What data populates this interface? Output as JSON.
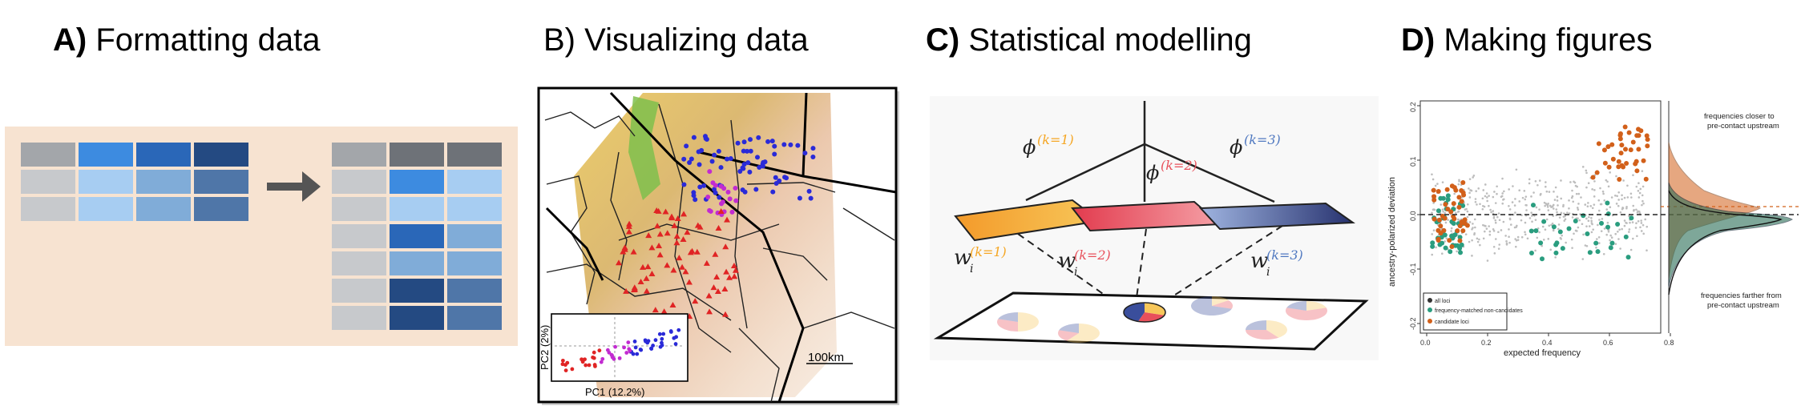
{
  "panels": {
    "a": {
      "label": "A)",
      "title": "Formatting data"
    },
    "b": {
      "label": "B)",
      "title": "Visualizing data",
      "inset_x_label": "PC1 (12.2%)",
      "inset_y_label": "PC2 (2%)",
      "scale_bar": "100km"
    },
    "c": {
      "label": "C)",
      "title": "Statistical modelling",
      "phi_labels": [
        "ϕ",
        "ϕ",
        "ϕ"
      ],
      "phi_k": [
        "(k=1)",
        "(k=2)",
        "(k=3)"
      ],
      "w_labels": [
        "w",
        "w",
        "w"
      ],
      "w_k": [
        "(k=1)",
        "(k=2)",
        "(k=3)"
      ],
      "w_sub": "i",
      "colors": {
        "k1": "#f5a623",
        "k2": "#e8505b",
        "k3": "#3a4e9c"
      }
    },
    "d": {
      "label": "D)",
      "title": "Making figures",
      "xlabel": "expected frequency",
      "ylabel": "ancestry-polarized deviation",
      "x_ticks": [
        "0.0",
        "0.2",
        "0.4",
        "0.6",
        "0.8"
      ],
      "y_ticks": [
        "0.2",
        "0.1",
        "0.0",
        "-0.1",
        "-0.2"
      ],
      "legend": [
        "all loci",
        "frequency-matched non-candidates",
        "candidate loci"
      ],
      "annot_top": [
        "frequencies closer to",
        "pre-contact upstream"
      ],
      "annot_bottom": [
        "frequencies farther from",
        "pre-contact upstream"
      ],
      "colors": {
        "all": "#bdbdbd",
        "matched": "#2a9d7f",
        "candidate": "#d2601a"
      }
    }
  }
}
